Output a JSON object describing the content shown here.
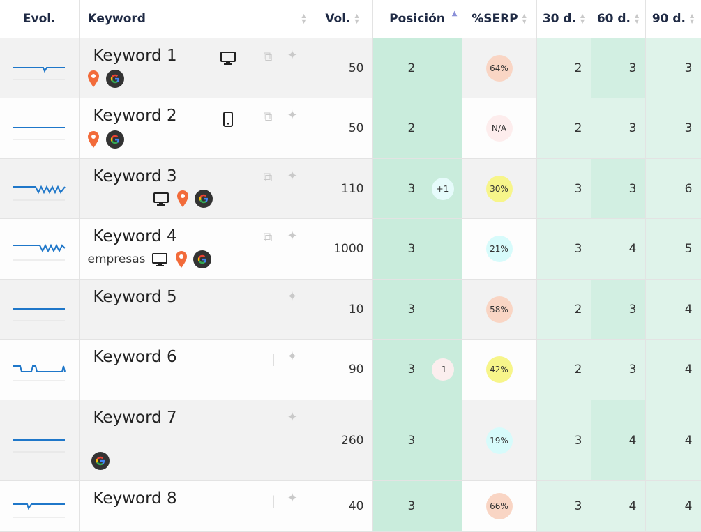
{
  "headers": {
    "evol": "Evol.",
    "keyword": "Keyword",
    "vol": "Vol.",
    "posicion": "Posición",
    "serp": "%SERP",
    "d30": "30 d.",
    "d60": "60 d.",
    "d90": "90 d."
  },
  "colors": {
    "sparkline": "#1f77c9",
    "position_bg": "#c9ecdc",
    "history_bg": "#dff3ea",
    "serp_salmon": "#f9d5c4",
    "serp_yellow": "#f7f58a",
    "serp_cyan": "#d7fbfb",
    "serp_pink": "#fdeded"
  },
  "rows": [
    {
      "keyword": "Keyword 1",
      "sub": "",
      "device": "desktop-icon",
      "vol": "50",
      "pos": "2",
      "delta": "",
      "serp": "64%",
      "serp_color": "salmon",
      "d30": "2",
      "d60": "3",
      "d90": "3"
    },
    {
      "keyword": "Keyword 2",
      "sub": "",
      "device": "mobile-icon",
      "vol": "50",
      "pos": "2",
      "delta": "",
      "serp": "N/A",
      "serp_color": "pink",
      "d30": "2",
      "d60": "3",
      "d90": "3"
    },
    {
      "keyword": "Keyword 3",
      "sub": "",
      "device": "desktop-icon",
      "vol": "110",
      "pos": "3",
      "delta": "+1",
      "serp": "30%",
      "serp_color": "yellow",
      "d30": "3",
      "d60": "3",
      "d90": "6"
    },
    {
      "keyword": "Keyword 4",
      "sub": "empresas",
      "device": "desktop-icon",
      "vol": "1000",
      "pos": "3",
      "delta": "",
      "serp": "21%",
      "serp_color": "cyan",
      "d30": "3",
      "d60": "4",
      "d90": "5"
    },
    {
      "keyword": "Keyword 5",
      "sub": "",
      "device": "",
      "vol": "10",
      "pos": "3",
      "delta": "",
      "serp": "58%",
      "serp_color": "salmon",
      "d30": "2",
      "d60": "3",
      "d90": "4"
    },
    {
      "keyword": "Keyword 6",
      "sub": "",
      "device": "",
      "vol": "90",
      "pos": "3",
      "delta": "-1",
      "serp": "42%",
      "serp_color": "yellow",
      "d30": "2",
      "d60": "3",
      "d90": "4"
    },
    {
      "keyword": "Keyword 7",
      "sub": "",
      "device": "",
      "vol": "260",
      "pos": "3",
      "delta": "",
      "serp": "19%",
      "serp_color": "cyan",
      "d30": "3",
      "d60": "4",
      "d90": "4"
    },
    {
      "keyword": "Keyword 8",
      "sub": "",
      "device": "",
      "vol": "40",
      "pos": "3",
      "delta": "",
      "serp": "66%",
      "serp_color": "salmon",
      "d30": "3",
      "d60": "4",
      "d90": "4"
    }
  ]
}
